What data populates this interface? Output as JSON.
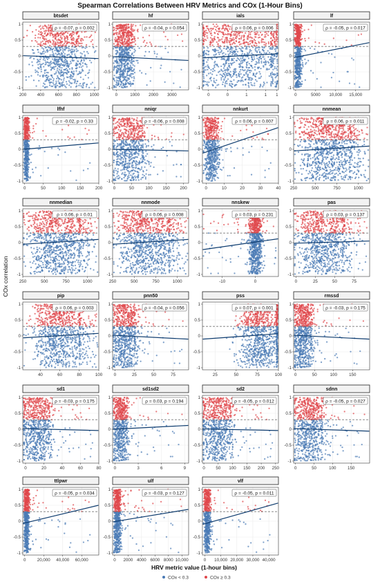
{
  "chart_data": {
    "type": "scatter",
    "title": "Spearman Correlations Between HRV Metrics and COx (1-Hour Bins)",
    "xlabel": "HRV metric value (1-hour bins)",
    "ylabel": "COx correlation",
    "threshold": 0.3,
    "ylim": [
      -1,
      1
    ],
    "yticks": [
      "-1",
      "-0.5",
      "0",
      "0.5",
      "1"
    ],
    "legend": {
      "position": "bottom",
      "items": [
        {
          "label": "COx < 0.3",
          "color": "#4a7ab5"
        },
        {
          "label": "COx ≥ 0.3",
          "color": "#e0474c"
        }
      ]
    },
    "colors": {
      "low": "#4a7ab5",
      "high": "#e0474c",
      "fit": "#0d3b6e",
      "threshold": "#777777"
    },
    "panels": [
      {
        "name": "btsdet",
        "stat": "ρ = -0.07,  p = 0.002",
        "xmin": 200,
        "xmax": 1050,
        "xticks": [
          200,
          400,
          600,
          800,
          1000
        ],
        "xtick_labels": [
          "200",
          "400",
          "600",
          "800",
          "1000"
        ],
        "fit": [
          0.01,
          -0.08
        ],
        "bulk": [
          400,
          800
        ],
        "n": 900
      },
      {
        "name": "hf",
        "stat": "ρ = -0.04,  p = 0.054",
        "xmin": -200,
        "xmax": 3900,
        "xticks": [
          0,
          1000,
          2000,
          3000
        ],
        "xtick_labels": [
          "0",
          "1000",
          "2000",
          "3000"
        ],
        "fit": [
          -0.02,
          -0.14
        ],
        "bulk": [
          0,
          800
        ],
        "n": 800
      },
      {
        "name": "ials",
        "stat": "ρ = 0.06,  p = 0.006",
        "xmin": 0,
        "xmax": 1.0,
        "xticks": [
          0.08,
          0.33,
          0.58,
          0.83,
          0.98
        ],
        "xtick_labels": [
          "0",
          "0",
          "1",
          "1",
          "1"
        ],
        "fit": [
          -0.06,
          0.07
        ],
        "bulk": [
          0.05,
          0.9
        ],
        "n": 1100
      },
      {
        "name": "lf",
        "stat": "ρ = -0.05,  p = 0.017",
        "xmin": -500,
        "xmax": 18500,
        "xticks": [
          0,
          5000,
          10000,
          15000
        ],
        "xtick_labels": [
          "0",
          "5000",
          "10,000",
          "15,000"
        ],
        "fit": [
          -0.05,
          0.42
        ],
        "bulk": [
          0,
          1200
        ],
        "n": 700
      },
      {
        "name": "lfhf",
        "stat": "ρ = -0.02,  p = 0.33",
        "xmin": -5,
        "xmax": 200,
        "xticks": [
          0,
          50,
          100,
          150,
          200
        ],
        "xtick_labels": [
          "0",
          "50",
          "100",
          "150",
          "200"
        ],
        "fit": [
          0.0,
          0.2
        ],
        "bulk": [
          0,
          10
        ],
        "n": 600
      },
      {
        "name": "nniqr",
        "stat": "ρ = -0.06,  p = 0.008",
        "xmin": -5,
        "xmax": 215,
        "xticks": [
          0,
          50,
          100,
          150,
          200
        ],
        "xtick_labels": [
          "0",
          "50",
          "100",
          "150",
          "200"
        ],
        "fit": [
          0.0,
          -0.05
        ],
        "bulk": [
          5,
          80
        ],
        "n": 800
      },
      {
        "name": "nnkurt",
        "stat": "ρ = 0.06,  p = 0.007",
        "xmin": -2,
        "xmax": 40,
        "xticks": [
          0,
          10,
          20,
          30,
          40
        ],
        "xtick_labels": [
          "0",
          "10",
          "20",
          "30",
          "40"
        ],
        "fit": [
          -0.12,
          0.68
        ],
        "bulk": [
          0,
          6
        ],
        "n": 700
      },
      {
        "name": "nnmean",
        "stat": "ρ = 0.06,  p = 0.011",
        "xmin": 250,
        "xmax": 1130,
        "xticks": [
          250,
          500,
          750,
          1000
        ],
        "xtick_labels": [
          "250",
          "500",
          "750",
          "1000"
        ],
        "fit": [
          -0.05,
          0.1
        ],
        "bulk": [
          400,
          900
        ],
        "n": 1100
      },
      {
        "name": "nnmedian",
        "stat": "ρ = 0.06,  p = 0.01",
        "xmin": 250,
        "xmax": 1130,
        "xticks": [
          250,
          500,
          750,
          1000
        ],
        "xtick_labels": [
          "250",
          "500",
          "750",
          "1000"
        ],
        "fit": [
          -0.05,
          0.1
        ],
        "bulk": [
          400,
          900
        ],
        "n": 1100
      },
      {
        "name": "nnmode",
        "stat": "ρ = 0.06,  p = 0.008",
        "xmin": 250,
        "xmax": 1130,
        "xticks": [
          250,
          500,
          750,
          1000
        ],
        "xtick_labels": [
          "250",
          "500",
          "750",
          "1000"
        ],
        "fit": [
          -0.05,
          0.1
        ],
        "bulk": [
          400,
          900
        ],
        "n": 1100
      },
      {
        "name": "nnskew",
        "stat": "ρ = 0.03,  p = 0.231",
        "xmin": -16,
        "xmax": 7,
        "xticks": [
          -10,
          0
        ],
        "xtick_labels": [
          "-10",
          "0"
        ],
        "fit": [
          -0.22,
          0.12
        ],
        "bulk": [
          -1.5,
          1.5
        ],
        "n": 900
      },
      {
        "name": "pas",
        "stat": "ρ = 0.03,  p = 0.137",
        "xmin": -3,
        "xmax": 95,
        "xticks": [
          0,
          25,
          50,
          75
        ],
        "xtick_labels": [
          "0",
          "25",
          "50",
          "75"
        ],
        "fit": [
          -0.02,
          0.05
        ],
        "bulk": [
          10,
          60
        ],
        "n": 1000
      },
      {
        "name": "pip",
        "stat": "ρ = 0.06,  p = 0.003",
        "xmin": 22,
        "xmax": 100,
        "xticks": [
          40,
          60,
          80,
          100
        ],
        "xtick_labels": [
          "40",
          "60",
          "80",
          "100"
        ],
        "fit": [
          -0.06,
          0.08
        ],
        "bulk": [
          40,
          80
        ],
        "n": 1000
      },
      {
        "name": "pnn50",
        "stat": "ρ = -0.04,  p = 0.056",
        "xmin": -3,
        "xmax": 95,
        "xticks": [
          0,
          25,
          50,
          75
        ],
        "xtick_labels": [
          "0",
          "25",
          "50",
          "75"
        ],
        "fit": [
          0.02,
          -0.1
        ],
        "bulk": [
          0,
          25
        ],
        "n": 800
      },
      {
        "name": "pss",
        "stat": "ρ = 0.07,  p = 0.001",
        "xmin": 10,
        "xmax": 100,
        "xticks": [
          25,
          50,
          75,
          100
        ],
        "xtick_labels": [
          "25",
          "50",
          "75",
          "100"
        ],
        "fit": [
          -0.1,
          0.07
        ],
        "bulk": [
          60,
          98
        ],
        "n": 1000
      },
      {
        "name": "rmssd",
        "stat": "ρ = -0.03,  p = 0.175",
        "xmin": -5,
        "xmax": 195,
        "xticks": [
          0,
          50,
          100,
          150
        ],
        "xtick_labels": [
          "0",
          "50",
          "100",
          "150"
        ],
        "fit": [
          0.02,
          -0.1
        ],
        "bulk": [
          0,
          40
        ],
        "n": 800
      },
      {
        "name": "sd1",
        "stat": "ρ = -0.03,  p = 0.175",
        "xmin": -3,
        "xmax": 80,
        "xticks": [
          0,
          20,
          40,
          60,
          80
        ],
        "xtick_labels": [
          "0",
          "20",
          "40",
          "60",
          "80"
        ],
        "fit": [
          0.02,
          -0.04
        ],
        "bulk": [
          0,
          25
        ],
        "n": 800
      },
      {
        "name": "sd1sd2",
        "stat": "ρ = 0.03,  p = 0.194",
        "xmin": -0.3,
        "xmax": 9.5,
        "xticks": [
          0,
          3,
          6,
          9
        ],
        "xtick_labels": [
          "0",
          "3",
          "6",
          "9"
        ],
        "fit": [
          0.0,
          0.12
        ],
        "bulk": [
          0,
          1.5
        ],
        "n": 700
      },
      {
        "name": "sd2",
        "stat": "ρ = -0.05,  p = 0.012",
        "xmin": -5,
        "xmax": 260,
        "xticks": [
          0,
          50,
          100,
          150,
          200,
          250
        ],
        "xtick_labels": [
          "0",
          "50",
          "100",
          "150",
          "200",
          "250"
        ],
        "fit": [
          0.01,
          -0.04
        ],
        "bulk": [
          5,
          90
        ],
        "n": 800
      },
      {
        "name": "sdnn",
        "stat": "ρ = -0.05,  p = 0.027",
        "xmin": -5,
        "xmax": 200,
        "xticks": [
          0,
          50,
          100,
          150
        ],
        "xtick_labels": [
          "0",
          "50",
          "100",
          "150"
        ],
        "fit": [
          0.02,
          -0.06
        ],
        "bulk": [
          5,
          70
        ],
        "n": 800
      },
      {
        "name": "ttlpwr",
        "stat": "ρ = -0.05,  p = 0.034",
        "xmin": -2000,
        "xmax": 78000,
        "xticks": [
          0,
          20000,
          40000,
          60000
        ],
        "xtick_labels": [
          "0",
          "20,000",
          "40,000",
          "60,000"
        ],
        "fit": [
          -0.07,
          0.5
        ],
        "bulk": [
          0,
          4000
        ],
        "n": 700
      },
      {
        "name": "ulf",
        "stat": "ρ = -0.03,  p = 0.127",
        "xmin": -300,
        "xmax": 11000,
        "xticks": [
          0,
          2000,
          4000,
          6000,
          8000,
          10000
        ],
        "xtick_labels": [
          "0",
          "2000",
          "4000",
          "6000",
          "8000",
          "10,000"
        ],
        "fit": [
          -0.02,
          0.37
        ],
        "bulk": [
          0,
          800
        ],
        "n": 700
      },
      {
        "name": "vlf",
        "stat": "ρ = -0.05,  p = 0.011",
        "xmin": -1500,
        "xmax": 46000,
        "xticks": [
          0,
          10000,
          20000,
          30000,
          40000
        ],
        "xtick_labels": [
          "0",
          "10,000",
          "20,000",
          "30,000",
          "40,000"
        ],
        "fit": [
          -0.1,
          0.57
        ],
        "bulk": [
          0,
          3000
        ],
        "n": 700
      }
    ]
  }
}
